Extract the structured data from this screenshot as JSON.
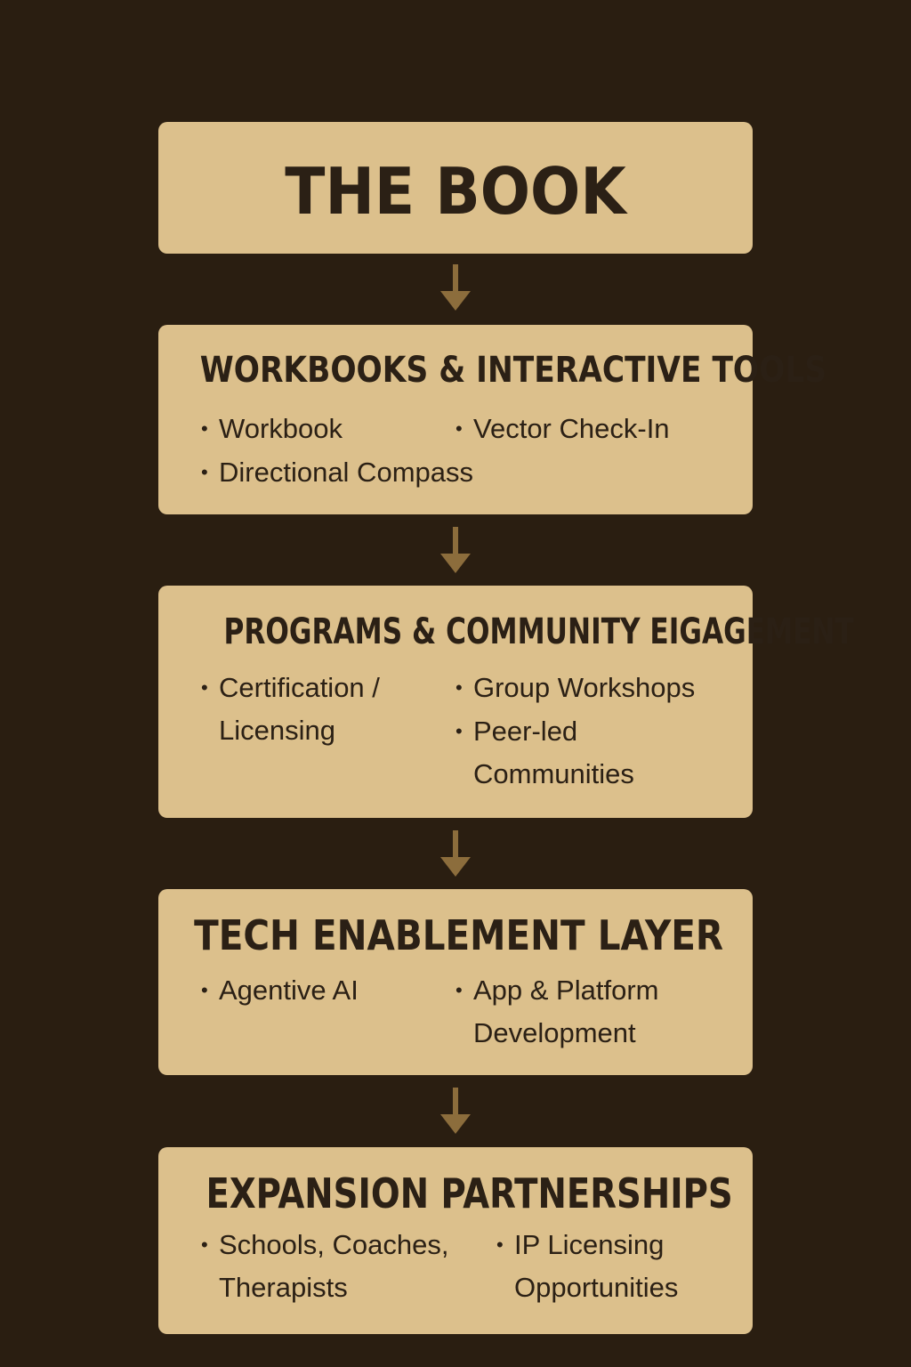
{
  "colors": {
    "background": "#2a1e11",
    "box": "#dcc08c",
    "text": "#2b2015",
    "arrow": "#8c6d3c"
  },
  "arrow_icon": "down-arrow-icon",
  "boxes": [
    {
      "title": "THE BOOK",
      "items": []
    },
    {
      "title": "WORKBOOKS & INTERACTIVE TOOLS",
      "items": [
        "Workbook",
        "Vector Check-In",
        "Directional Compass"
      ]
    },
    {
      "title": "PROGRAMS & COMMUNITY EIGAGEMENT",
      "items": [
        "Certification /\nLicensing",
        "Group Workshops",
        "Peer-led\nCommunities"
      ]
    },
    {
      "title": "TECH ENABLEMENT LAYER",
      "items": [
        "Agentive AI",
        "App & Platform\nDevelopment"
      ]
    },
    {
      "title": "EXPANSION PARTNERSHIPS",
      "items": [
        "Schools, Coaches,\nTherapists",
        "IP Licensing\nOpportunities"
      ]
    }
  ]
}
